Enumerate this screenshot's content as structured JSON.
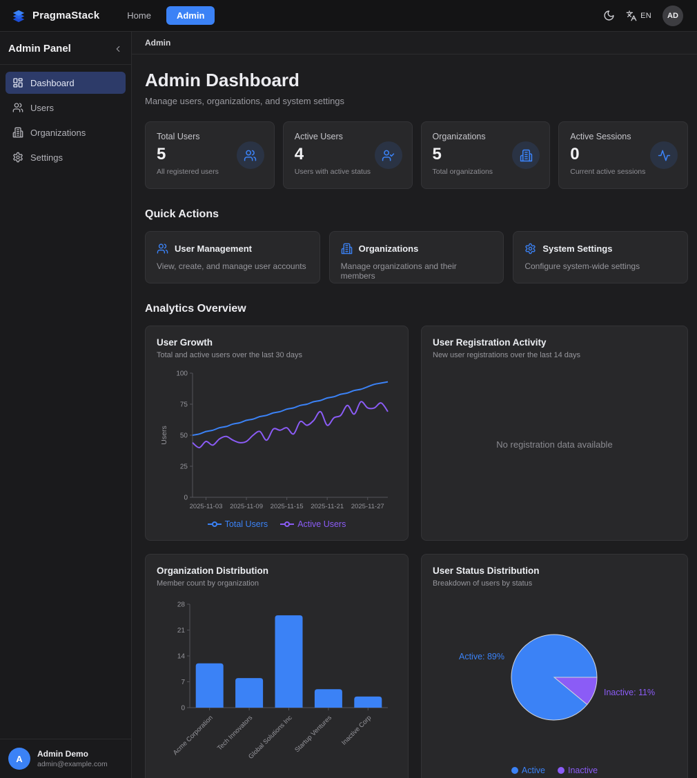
{
  "navbar": {
    "brand": "PragmaStack",
    "links": [
      {
        "label": "Home",
        "active": false
      },
      {
        "label": "Admin",
        "active": true
      }
    ],
    "language": "EN",
    "avatar": "AD"
  },
  "sidebar": {
    "title": "Admin Panel",
    "items": [
      {
        "label": "Dashboard",
        "icon": "dashboard-icon",
        "active": true
      },
      {
        "label": "Users",
        "icon": "users-icon",
        "active": false
      },
      {
        "label": "Organizations",
        "icon": "building-icon",
        "active": false
      },
      {
        "label": "Settings",
        "icon": "gear-icon",
        "active": false
      }
    ],
    "user": {
      "initial": "A",
      "name": "Admin Demo",
      "email": "admin@example.com"
    }
  },
  "breadcrumb": "Admin",
  "header": {
    "title": "Admin Dashboard",
    "subtitle": "Manage users, organizations, and system settings"
  },
  "stats": [
    {
      "label": "Total Users",
      "value": "5",
      "description": "All registered users",
      "icon": "users-icon"
    },
    {
      "label": "Active Users",
      "value": "4",
      "description": "Users with active status",
      "icon": "user-check-icon"
    },
    {
      "label": "Organizations",
      "value": "5",
      "description": "Total organizations",
      "icon": "building-icon"
    },
    {
      "label": "Active Sessions",
      "value": "0",
      "description": "Current active sessions",
      "icon": "activity-icon"
    }
  ],
  "quick_actions": {
    "heading": "Quick Actions",
    "cards": [
      {
        "label": "User Management",
        "description": "View, create, and manage user accounts",
        "icon": "users-icon"
      },
      {
        "label": "Organizations",
        "description": "Manage organizations and their members",
        "icon": "building-icon"
      },
      {
        "label": "System Settings",
        "description": "Configure system-wide settings",
        "icon": "gear-icon"
      }
    ]
  },
  "analytics": {
    "heading": "Analytics Overview",
    "user_growth": {
      "title": "User Growth",
      "subtitle": "Total and active users over the last 30 days"
    },
    "registration": {
      "title": "User Registration Activity",
      "subtitle": "New user registrations over the last 14 days",
      "empty_text": "No registration data available"
    },
    "org_distribution": {
      "title": "Organization Distribution",
      "subtitle": "Member count by organization"
    },
    "status_distribution": {
      "title": "User Status Distribution",
      "subtitle": "Breakdown of users by status"
    }
  },
  "colors": {
    "accent_blue": "#3b82f6",
    "accent_purple": "#8b5cf6"
  },
  "chart_data": [
    {
      "id": "user_growth",
      "type": "line",
      "title": "User Growth",
      "xlabel": "",
      "ylabel": "Users",
      "ylim": [
        0,
        100
      ],
      "yticks": [
        0,
        25,
        50,
        75,
        100
      ],
      "x_tick_labels": [
        "2025-11-03",
        "2025-11-09",
        "2025-11-15",
        "2025-11-21",
        "2025-11-27"
      ],
      "x_tick_indices": [
        2,
        8,
        14,
        20,
        26
      ],
      "legend_position": "bottom",
      "series": [
        {
          "name": "Total Users",
          "color": "#3b82f6",
          "values": [
            50,
            51,
            53,
            54,
            56,
            57,
            59,
            60,
            62,
            63,
            65,
            66,
            68,
            69,
            71,
            72,
            74,
            75,
            77,
            78,
            80,
            81,
            83,
            84,
            86,
            87,
            89,
            91,
            92,
            93
          ]
        },
        {
          "name": "Active Users",
          "color": "#8b5cf6",
          "values": [
            44,
            40,
            45,
            42,
            47,
            49,
            46,
            44,
            45,
            50,
            53,
            46,
            55,
            54,
            56,
            51,
            61,
            58,
            62,
            69,
            58,
            64,
            66,
            74,
            67,
            77,
            72,
            72,
            76,
            69
          ]
        }
      ]
    },
    {
      "id": "org_distribution",
      "type": "bar",
      "title": "Organization Distribution",
      "categories": [
        "Acme Corporation",
        "Tech Innovators",
        "Global Solutions Inc",
        "Startup Ventures",
        "Inactive Corp"
      ],
      "values": [
        12,
        8,
        25,
        5,
        3
      ],
      "ylim": [
        0,
        28
      ],
      "yticks": [
        0,
        7,
        14,
        21,
        28
      ],
      "bar_color": "#3b82f6"
    },
    {
      "id": "status_distribution",
      "type": "pie",
      "title": "User Status Distribution",
      "slices": [
        {
          "name": "Active",
          "pct": 89,
          "color": "#3b82f6",
          "label": "Active: 89%"
        },
        {
          "name": "Inactive",
          "pct": 11,
          "color": "#8b5cf6",
          "label": "Inactive: 11%"
        }
      ],
      "legend": [
        "Active",
        "Inactive"
      ]
    }
  ]
}
